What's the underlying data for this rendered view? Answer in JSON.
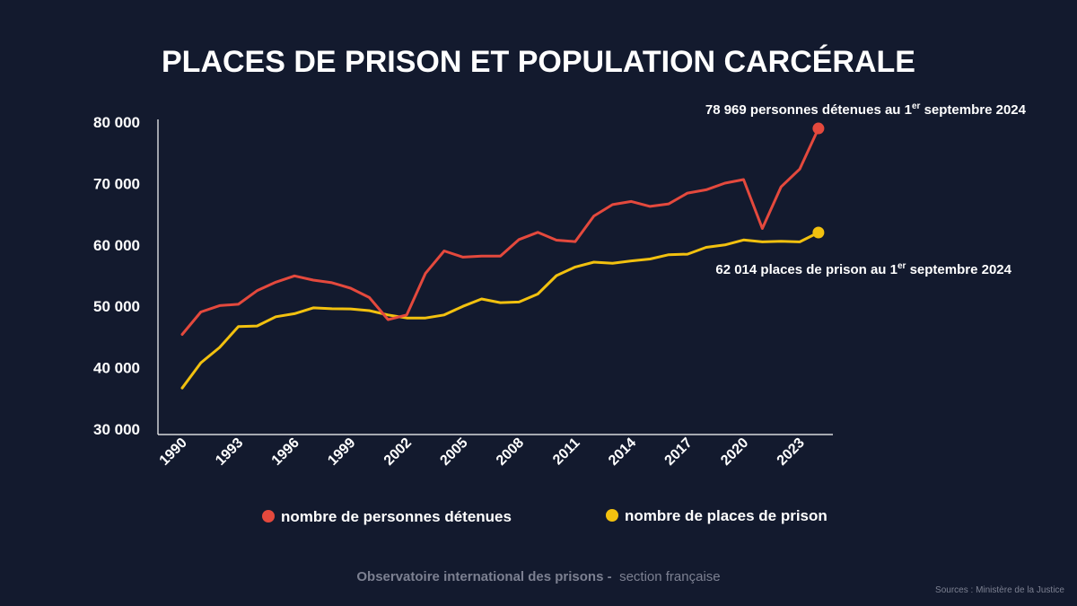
{
  "colors": {
    "background": "#131a2e",
    "detenus": "#e4493d",
    "places": "#f2c10f",
    "axis": "#ffffff",
    "footer": "#7c8091"
  },
  "chart_data": {
    "type": "line",
    "title": "PLACES DE PRISON ET POPULATION CARCÉRALE",
    "x": [
      1990,
      1991,
      1992,
      1993,
      1994,
      1995,
      1996,
      1997,
      1998,
      1999,
      2000,
      2001,
      2002,
      2003,
      2004,
      2005,
      2006,
      2007,
      2008,
      2009,
      2010,
      2011,
      2012,
      2013,
      2014,
      2015,
      2016,
      2017,
      2018,
      2019,
      2020,
      2021,
      2022,
      2023,
      2024
    ],
    "x_tick_labels": [
      "1990",
      "1993",
      "1996",
      "1999",
      "2002",
      "2005",
      "2008",
      "2011",
      "2014",
      "2017",
      "2020",
      "2023"
    ],
    "y_tick_labels": [
      "30 000",
      "40 000",
      "50 000",
      "60 000",
      "70 000",
      "80 000"
    ],
    "ylim": [
      30000,
      80000
    ],
    "grid": false,
    "legend_position": "bottom",
    "series": [
      {
        "name": "nombre de personnes détenues",
        "color": "#e4493d",
        "values": [
          45420,
          49080,
          50120,
          50340,
          52550,
          53940,
          54950,
          54270,
          53850,
          52960,
          51440,
          47840,
          48590,
          55380,
          59020,
          58010,
          58170,
          58190,
          60870,
          62040,
          60780,
          60540,
          64710,
          66570,
          67080,
          66270,
          66680,
          68430,
          68970,
          70060,
          70650,
          62670,
          69450,
          72350,
          78969
        ]
      },
      {
        "name": "nombre de places de prison",
        "color": "#f2c10f",
        "values": [
          36700,
          40800,
          43300,
          46700,
          46800,
          48300,
          48800,
          49750,
          49600,
          49570,
          49300,
          48600,
          48100,
          48100,
          48600,
          50000,
          51200,
          50600,
          50700,
          52000,
          55000,
          56400,
          57200,
          57000,
          57400,
          57700,
          58400,
          58500,
          59600,
          60000,
          60800,
          60500,
          60600,
          60500,
          62014
        ]
      }
    ],
    "annotations": [
      {
        "series": 0,
        "text": "78 969 personnes détenues au 1",
        "sup": "er",
        "tail": " septembre 2024"
      },
      {
        "series": 1,
        "text": "62 014 places de prison au 1",
        "sup": "er",
        "tail": " septembre 2024"
      }
    ]
  },
  "footer": {
    "org": "Observatoire international des prisons -",
    "section": "section française",
    "source": "Sources : Ministère de la Justice"
  }
}
